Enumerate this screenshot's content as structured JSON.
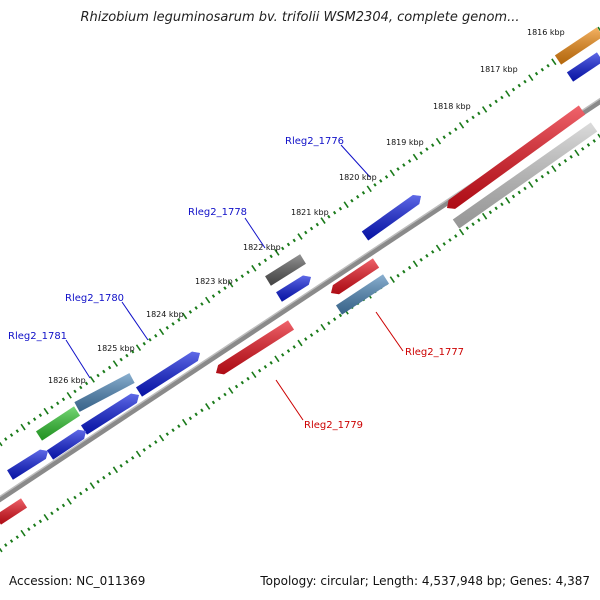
{
  "title": "Rhizobium leguminosarum bv. trifolii WSM2304, complete genom...",
  "footer": {
    "accession": "Accession: NC_011369",
    "info": "Topology: circular; Length: 4,537,948 bp; Genes: 4,387"
  },
  "ticks": [
    "1816 kbp",
    "1817 kbp",
    "1818 kbp",
    "1819 kbp",
    "1820 kbp",
    "1821 kbp",
    "1822 kbp",
    "1823 kbp",
    "1824 kbp",
    "1825 kbp",
    "1826 kbp"
  ],
  "gene_labels": {
    "rleg2_1776": "Rleg2_1776",
    "rleg2_1777": "Rleg2_1777",
    "rleg2_1778": "Rleg2_1778",
    "rleg2_1779": "Rleg2_1779",
    "rleg2_1780": "Rleg2_1780",
    "rleg2_1781": "Rleg2_1781"
  },
  "colors": {
    "forward_gene": "#0a1adb",
    "reverse_gene": "#e8101c",
    "rna_gene": "#4c86b8",
    "pseudo_gene": "#5a5a5a",
    "other_gene": "#f08a10",
    "green_gene": "#2ec42e",
    "grey_gene": "#c8c8c8",
    "backbone": "#777777",
    "tick": "#1a7a1a",
    "forward_label": "#1010c8",
    "reverse_label": "#cc0000"
  }
}
